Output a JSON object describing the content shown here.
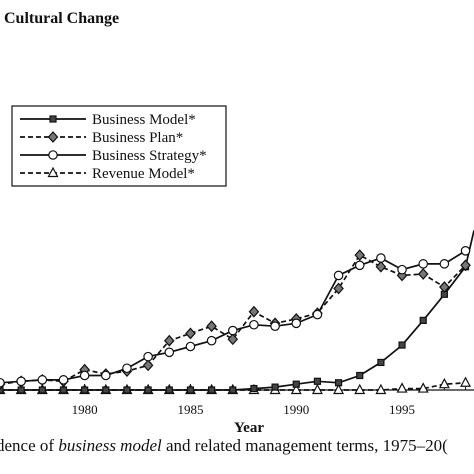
{
  "header": {
    "title": "Cultural Change"
  },
  "caption": {
    "prefix": "dence of ",
    "emphasis": "business model",
    "suffix": " and related management terms, 1975–20("
  },
  "chart_data": {
    "type": "line",
    "xlabel": "Year",
    "ylabel": "",
    "x_ticks": [
      1980,
      1985,
      1990,
      1995
    ],
    "xlim": [
      1976,
      1998.4
    ],
    "ylim": [
      0,
      16
    ],
    "grid": false,
    "legend_position": "top-left",
    "series": [
      {
        "name": "Business Model*",
        "style": "solid",
        "marker": "square",
        "color": "#111111",
        "x": [
          1976,
          1977,
          1978,
          1979,
          1980,
          1981,
          1982,
          1983,
          1984,
          1985,
          1986,
          1987,
          1988,
          1989,
          1990,
          1991,
          1992,
          1993,
          1994,
          1995,
          1996,
          1997,
          1998,
          1998.4
        ],
        "y": [
          0,
          0,
          0,
          0,
          0,
          0,
          0,
          0,
          0,
          0,
          0,
          0,
          0.1,
          0.2,
          0.4,
          0.6,
          0.5,
          1.0,
          1.9,
          3.1,
          4.8,
          6.6,
          8.5,
          11.0
        ]
      },
      {
        "name": "Business Plan*",
        "style": "dashed",
        "marker": "diamond",
        "color": "#111111",
        "x": [
          1976,
          1977,
          1978,
          1979,
          1980,
          1981,
          1982,
          1983,
          1984,
          1985,
          1986,
          1987,
          1988,
          1989,
          1990,
          1991,
          1992,
          1993,
          1994,
          1995,
          1996,
          1997,
          1998
        ],
        "y": [
          0.4,
          0.6,
          0.7,
          0.6,
          1.4,
          1.1,
          1.3,
          1.7,
          3.4,
          3.9,
          4.4,
          3.5,
          5.4,
          4.6,
          4.9,
          5.3,
          7.0,
          9.3,
          8.5,
          7.9,
          8.0,
          7.1,
          8.6
        ]
      },
      {
        "name": "Business Strategy*",
        "style": "solid",
        "marker": "circle",
        "color": "#111111",
        "x": [
          1976,
          1977,
          1978,
          1979,
          1980,
          1981,
          1982,
          1983,
          1984,
          1985,
          1986,
          1987,
          1988,
          1989,
          1990,
          1991,
          1992,
          1993,
          1994,
          1995,
          1996,
          1997,
          1998
        ],
        "y": [
          0.5,
          0.6,
          0.7,
          0.7,
          1.0,
          1.0,
          1.5,
          2.3,
          2.6,
          3.0,
          3.4,
          4.1,
          4.5,
          4.4,
          4.6,
          5.2,
          7.9,
          8.6,
          9.1,
          8.3,
          8.7,
          8.7,
          9.6
        ]
      },
      {
        "name": "Revenue Model*",
        "style": "dashed",
        "marker": "triangle",
        "color": "#111111",
        "x": [
          1976,
          1977,
          1978,
          1979,
          1980,
          1981,
          1982,
          1983,
          1984,
          1985,
          1986,
          1987,
          1988,
          1989,
          1990,
          1991,
          1992,
          1993,
          1994,
          1995,
          1996,
          1997,
          1998
        ],
        "y": [
          0,
          0,
          0,
          0,
          0,
          0,
          0,
          0,
          0,
          0,
          0,
          0,
          0,
          0,
          0,
          0,
          0,
          0,
          0,
          0.1,
          0.1,
          0.4,
          0.5
        ]
      }
    ]
  }
}
